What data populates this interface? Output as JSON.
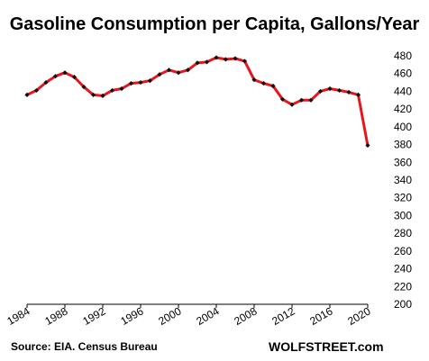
{
  "chart_data": {
    "type": "line",
    "title": "Gasoline  Consumption  per Capita,  Gallons/Year",
    "xlabel": "",
    "ylabel": "",
    "x": [
      1984,
      1985,
      1986,
      1987,
      1988,
      1989,
      1990,
      1991,
      1992,
      1993,
      1994,
      1995,
      1996,
      1997,
      1998,
      1999,
      2000,
      2001,
      2002,
      2003,
      2004,
      2005,
      2006,
      2007,
      2008,
      2009,
      2010,
      2011,
      2012,
      2013,
      2014,
      2015,
      2016,
      2017,
      2018,
      2019,
      2020
    ],
    "series": [
      {
        "values": [
          436,
          441,
          450,
          457,
          461,
          456,
          445,
          436,
          435,
          441,
          443,
          449,
          450,
          452,
          459,
          464,
          461,
          464,
          472,
          473,
          478,
          476,
          477,
          474,
          453,
          449,
          446,
          431,
          425,
          430,
          430,
          440,
          443,
          441,
          439,
          436,
          379
        ],
        "color": "#e8161c",
        "marker_color": "#111111"
      }
    ],
    "xticks": [
      "1984",
      "1988",
      "1992",
      "1996",
      "2000",
      "2004",
      "2008",
      "2012",
      "2016",
      "2020"
    ],
    "yticks": [
      "200",
      "220",
      "240",
      "260",
      "280",
      "300",
      "320",
      "340",
      "360",
      "380",
      "400",
      "420",
      "440",
      "460",
      "480"
    ],
    "xlim": [
      1984,
      2020
    ],
    "ylim": [
      200,
      480
    ],
    "grid": false,
    "y_axis_side": "right",
    "source": "Source: EIA. Census Bureau",
    "watermark": "WOLFSTREET.com"
  }
}
